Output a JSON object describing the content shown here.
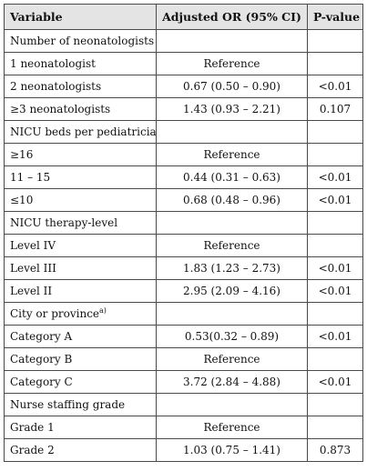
{
  "table": {
    "headers": [
      "Variable",
      "Adjusted OR (95% CI)",
      "P-value"
    ],
    "rows": [
      {
        "variable": "Number of neonatologists",
        "sup": "",
        "or": "",
        "p": ""
      },
      {
        "variable": "1 neonatologist",
        "sup": "",
        "or": "Reference",
        "p": ""
      },
      {
        "variable": "2 neonatologists",
        "sup": "",
        "or": "0.67 (0.50 – 0.90)",
        "p": "<0.01"
      },
      {
        "variable": "≥3 neonatologists",
        "sup": "",
        "or": "1.43 (0.93 – 2.21)",
        "p": "0.107"
      },
      {
        "variable": "NICU beds per pediatrician",
        "sup": "",
        "or": "",
        "p": ""
      },
      {
        "variable": "≥16",
        "sup": "",
        "or": "Reference",
        "p": ""
      },
      {
        "variable": "11 – 15",
        "sup": "",
        "or": "0.44 (0.31 – 0.63)",
        "p": "<0.01"
      },
      {
        "variable": "≤10",
        "sup": "",
        "or": "0.68 (0.48 – 0.96)",
        "p": "<0.01"
      },
      {
        "variable": "NICU therapy-level",
        "sup": "",
        "or": "",
        "p": ""
      },
      {
        "variable": "Level IV",
        "sup": "",
        "or": "Reference",
        "p": ""
      },
      {
        "variable": "Level III",
        "sup": "",
        "or": "1.83 (1.23 – 2.73)",
        "p": "<0.01"
      },
      {
        "variable": "Level II",
        "sup": "",
        "or": "2.95 (2.09 – 4.16)",
        "p": "<0.01"
      },
      {
        "variable": "City or province",
        "sup": "a)",
        "or": "",
        "p": ""
      },
      {
        "variable": "Category A",
        "sup": "",
        "or": "0.53(0.32 – 0.89)",
        "p": "<0.01"
      },
      {
        "variable": "Category B",
        "sup": "",
        "or": "Reference",
        "p": ""
      },
      {
        "variable": "Category C",
        "sup": "",
        "or": "3.72 (2.84 – 4.88)",
        "p": "<0.01"
      },
      {
        "variable": "Nurse staffing grade",
        "sup": "",
        "or": "",
        "p": ""
      },
      {
        "variable": "Grade 1",
        "sup": "",
        "or": "Reference",
        "p": ""
      },
      {
        "variable": "Grade 2",
        "sup": "",
        "or": "1.03 (0.75 – 1.41)",
        "p": "0.873"
      }
    ]
  }
}
